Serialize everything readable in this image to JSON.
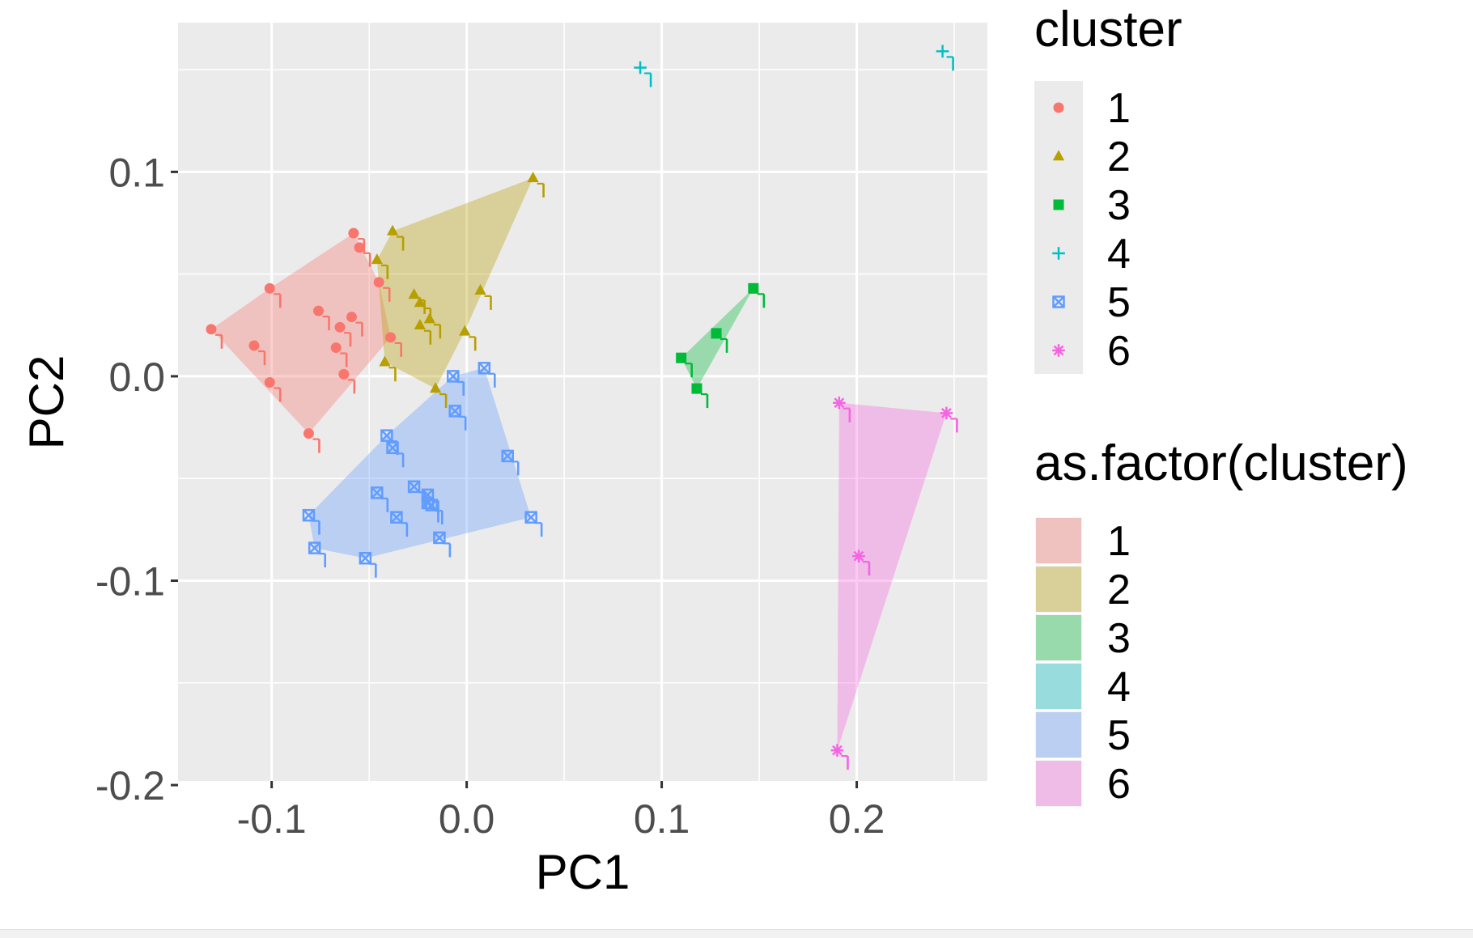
{
  "chart_data": {
    "type": "scatter",
    "xlabel": "PC1",
    "ylabel": "PC2",
    "xlim": [
      -0.148,
      0.267
    ],
    "ylim": [
      -0.198,
      0.173
    ],
    "x_ticks": [
      -0.1,
      0.0,
      0.1,
      0.2
    ],
    "x_tick_labels": [
      "-0.1",
      "0.0",
      "0.1",
      "0.2"
    ],
    "y_ticks": [
      -0.2,
      -0.1,
      0.0,
      0.1
    ],
    "y_tick_labels": [
      "-0.2",
      "-0.1",
      "0.0",
      "0.1"
    ],
    "grid": true,
    "legend_placement": "right",
    "legends": [
      {
        "title": "cluster",
        "kind": "points",
        "labels": [
          "1",
          "2",
          "3",
          "4",
          "5",
          "6"
        ]
      },
      {
        "title": "as.factor(cluster)",
        "kind": "fill",
        "labels": [
          "1",
          "2",
          "3",
          "4",
          "5",
          "6"
        ]
      }
    ],
    "series": [
      {
        "name": "1",
        "color": "#F8766D",
        "shape": "circle",
        "points": [
          [
            -0.131,
            0.023
          ],
          [
            -0.109,
            0.015
          ],
          [
            -0.101,
            0.043
          ],
          [
            -0.101,
            -0.003
          ],
          [
            -0.081,
            -0.028
          ],
          [
            -0.076,
            0.032
          ],
          [
            -0.067,
            0.014
          ],
          [
            -0.065,
            0.024
          ],
          [
            -0.063,
            0.001
          ],
          [
            -0.059,
            0.029
          ],
          [
            -0.058,
            0.07
          ],
          [
            -0.055,
            0.063
          ],
          [
            -0.045,
            0.046
          ],
          [
            -0.039,
            0.019
          ]
        ]
      },
      {
        "name": "2",
        "color": "#B79F00",
        "shape": "triangle",
        "points": [
          [
            -0.046,
            0.057
          ],
          [
            -0.042,
            0.007
          ],
          [
            -0.038,
            0.071
          ],
          [
            -0.027,
            0.04
          ],
          [
            -0.024,
            0.036
          ],
          [
            -0.024,
            0.025
          ],
          [
            -0.019,
            0.028
          ],
          [
            -0.016,
            -0.006
          ],
          [
            -0.001,
            0.022
          ],
          [
            0.007,
            0.042
          ],
          [
            0.034,
            0.097
          ]
        ]
      },
      {
        "name": "3",
        "color": "#00BA38",
        "shape": "square",
        "points": [
          [
            0.11,
            0.009
          ],
          [
            0.118,
            -0.006
          ],
          [
            0.128,
            0.021
          ],
          [
            0.147,
            0.043
          ]
        ]
      },
      {
        "name": "4",
        "color": "#00BFC4",
        "shape": "plus",
        "points": [
          [
            0.089,
            0.151
          ],
          [
            0.244,
            0.159
          ]
        ]
      },
      {
        "name": "5",
        "color": "#619CFF",
        "shape": "square-x",
        "points": [
          [
            -0.081,
            -0.068
          ],
          [
            -0.078,
            -0.084
          ],
          [
            -0.052,
            -0.089
          ],
          [
            -0.046,
            -0.057
          ],
          [
            -0.041,
            -0.029
          ],
          [
            -0.038,
            -0.035
          ],
          [
            -0.036,
            -0.069
          ],
          [
            -0.027,
            -0.054
          ],
          [
            -0.02,
            -0.058
          ],
          [
            -0.02,
            -0.062
          ],
          [
            -0.018,
            -0.063
          ],
          [
            -0.014,
            -0.079
          ],
          [
            -0.007,
            0.0
          ],
          [
            -0.006,
            -0.017
          ],
          [
            0.009,
            0.004
          ],
          [
            0.021,
            -0.039
          ],
          [
            0.033,
            -0.069
          ]
        ]
      },
      {
        "name": "6",
        "color": "#F564E3",
        "shape": "asterisk",
        "points": [
          [
            0.19,
            -0.183
          ],
          [
            0.191,
            -0.013
          ],
          [
            0.201,
            -0.088
          ],
          [
            0.246,
            -0.018
          ]
        ]
      }
    ]
  }
}
